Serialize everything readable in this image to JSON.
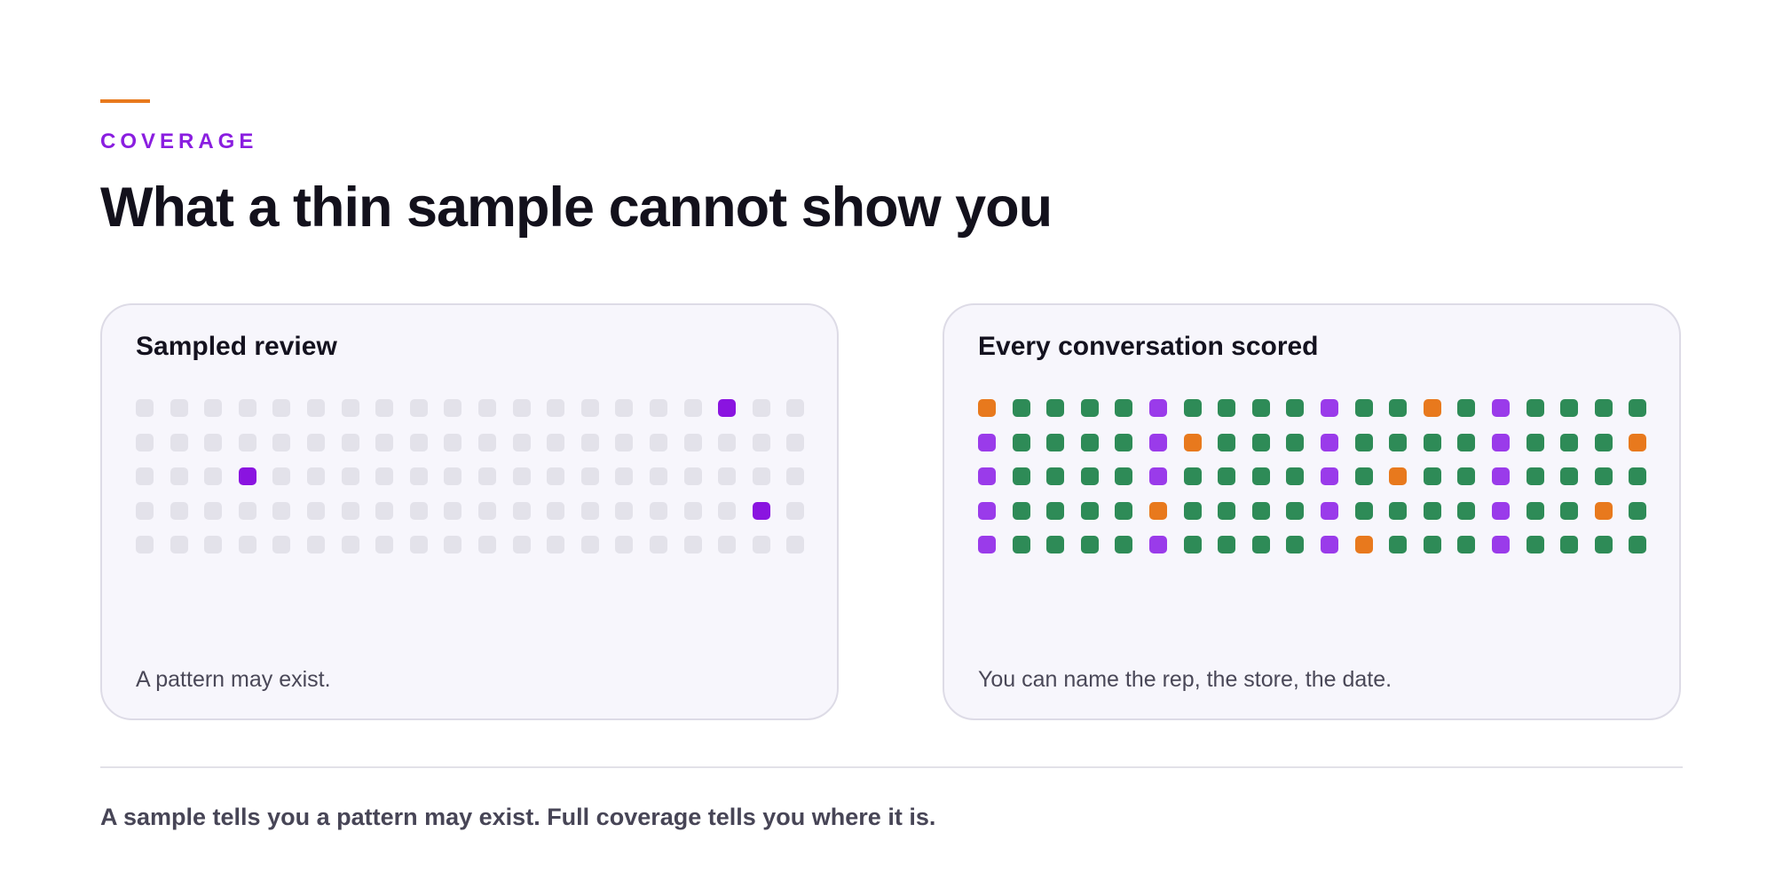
{
  "header": {
    "eyebrow": "COVERAGE",
    "title": "What a thin sample cannot show you"
  },
  "cards": [
    {
      "title": "Sampled review",
      "caption": "A pattern may exist."
    },
    {
      "title": "Every conversation scored",
      "caption": "You can name the rep, the store, the date."
    }
  ],
  "footer": "A sample tells you a pattern may exist. Full coverage tells you where it is."
}
